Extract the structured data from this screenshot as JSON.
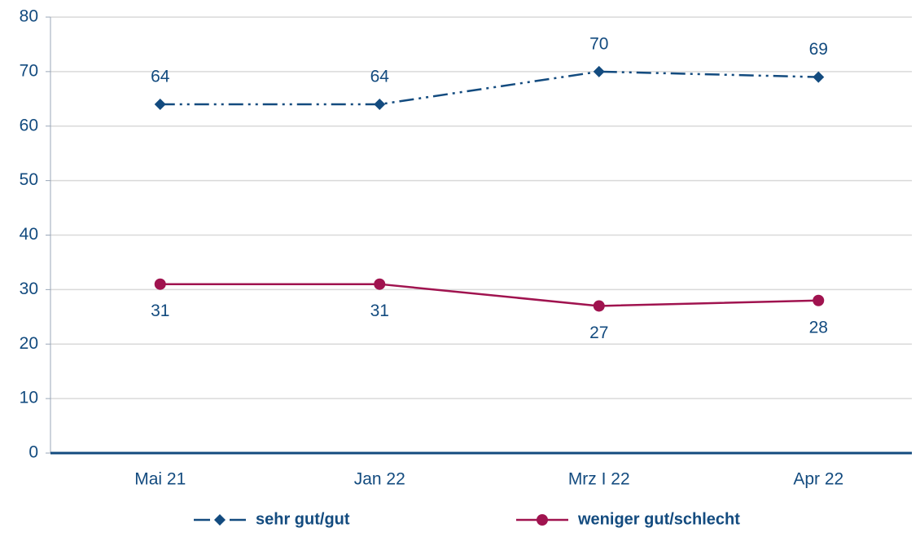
{
  "chart_data": {
    "type": "line",
    "categories": [
      "Mai 21",
      "Jan 22",
      "Mrz I 22",
      "Apr 22"
    ],
    "series": [
      {
        "name": "sehr gut/gut",
        "color": "#134b7f",
        "values": [
          64,
          64,
          70,
          69
        ]
      },
      {
        "name": "weniger gut/schlecht",
        "color": "#a0134f",
        "values": [
          31,
          31,
          27,
          28
        ]
      }
    ],
    "ylim": [
      0,
      80
    ],
    "yticks": [
      0,
      10,
      20,
      30,
      40,
      50,
      60,
      70,
      80
    ],
    "grid": true,
    "legend": "bottom"
  }
}
